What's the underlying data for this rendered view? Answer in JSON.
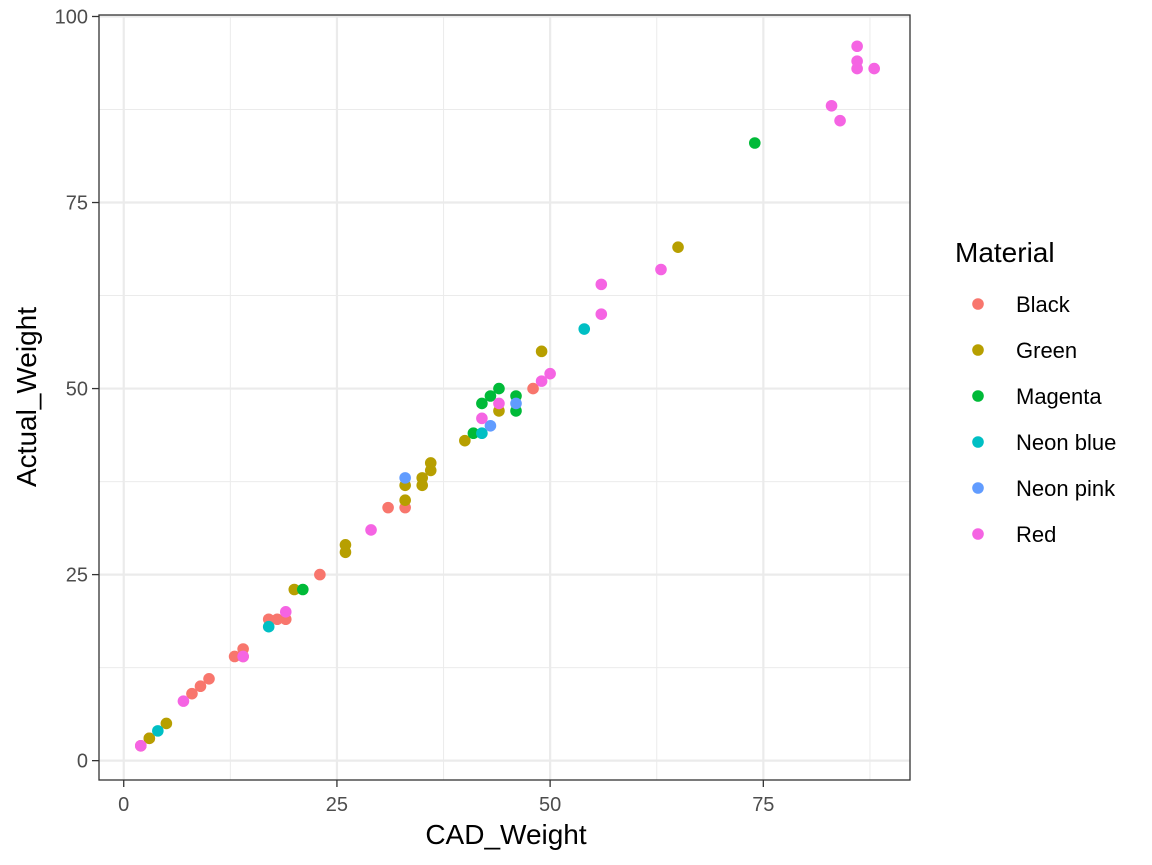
{
  "chart_data": {
    "type": "scatter",
    "xlabel": "CAD_Weight",
    "ylabel": "Actual_Weight",
    "xlim": [
      -2.9,
      92.2
    ],
    "ylim": [
      -2.6,
      100.2
    ],
    "x_ticks": [
      0,
      25,
      50,
      75
    ],
    "y_ticks": [
      0,
      25,
      50,
      75,
      100
    ],
    "x_tick_labels": [
      "0",
      "25",
      "50",
      "75"
    ],
    "y_tick_labels": [
      "0",
      "25",
      "50",
      "75",
      "100"
    ],
    "grid": true,
    "legend": {
      "title": "Material",
      "placement": "right"
    },
    "series": [
      {
        "name": "Black",
        "color": "#F8766D",
        "points": [
          [
            2,
            2
          ],
          [
            3,
            3
          ],
          [
            8,
            9
          ],
          [
            9,
            10
          ],
          [
            10,
            11
          ],
          [
            13,
            14
          ],
          [
            14,
            15
          ],
          [
            14,
            14
          ],
          [
            17,
            19
          ],
          [
            18,
            19
          ],
          [
            19,
            19
          ],
          [
            23,
            25
          ],
          [
            31,
            34
          ],
          [
            33,
            34
          ],
          [
            48,
            50
          ]
        ]
      },
      {
        "name": "Green",
        "color": "#B79F00",
        "points": [
          [
            3,
            3
          ],
          [
            5,
            5
          ],
          [
            20,
            23
          ],
          [
            26,
            29
          ],
          [
            26,
            28
          ],
          [
            33,
            37
          ],
          [
            33,
            35
          ],
          [
            35,
            38
          ],
          [
            35,
            37
          ],
          [
            36,
            40
          ],
          [
            36,
            39
          ],
          [
            40,
            43
          ],
          [
            44,
            47
          ],
          [
            49,
            55
          ],
          [
            65,
            69
          ]
        ]
      },
      {
        "name": "Magenta",
        "color": "#00BA38",
        "points": [
          [
            21,
            23
          ],
          [
            41,
            44
          ],
          [
            42,
            48
          ],
          [
            43,
            49
          ],
          [
            44,
            50
          ],
          [
            46,
            49
          ],
          [
            46,
            47
          ],
          [
            74,
            83
          ]
        ]
      },
      {
        "name": "Neon blue",
        "color": "#00BFC4",
        "points": [
          [
            4,
            4
          ],
          [
            17,
            18
          ],
          [
            42,
            44
          ],
          [
            54,
            58
          ]
        ]
      },
      {
        "name": "Neon pink",
        "color": "#619CFF",
        "points": [
          [
            33,
            38
          ],
          [
            43,
            45
          ],
          [
            46,
            48
          ]
        ]
      },
      {
        "name": "Red",
        "color": "#F564E3",
        "points": [
          [
            2,
            2
          ],
          [
            7,
            8
          ],
          [
            14,
            14
          ],
          [
            19,
            20
          ],
          [
            29,
            31
          ],
          [
            42,
            46
          ],
          [
            44,
            48
          ],
          [
            49,
            51
          ],
          [
            50,
            52
          ],
          [
            56,
            64
          ],
          [
            56,
            60
          ],
          [
            63,
            66
          ],
          [
            83,
            88
          ],
          [
            84,
            86
          ],
          [
            86,
            96
          ],
          [
            86,
            94
          ],
          [
            86,
            93
          ],
          [
            88,
            93
          ]
        ]
      }
    ]
  }
}
